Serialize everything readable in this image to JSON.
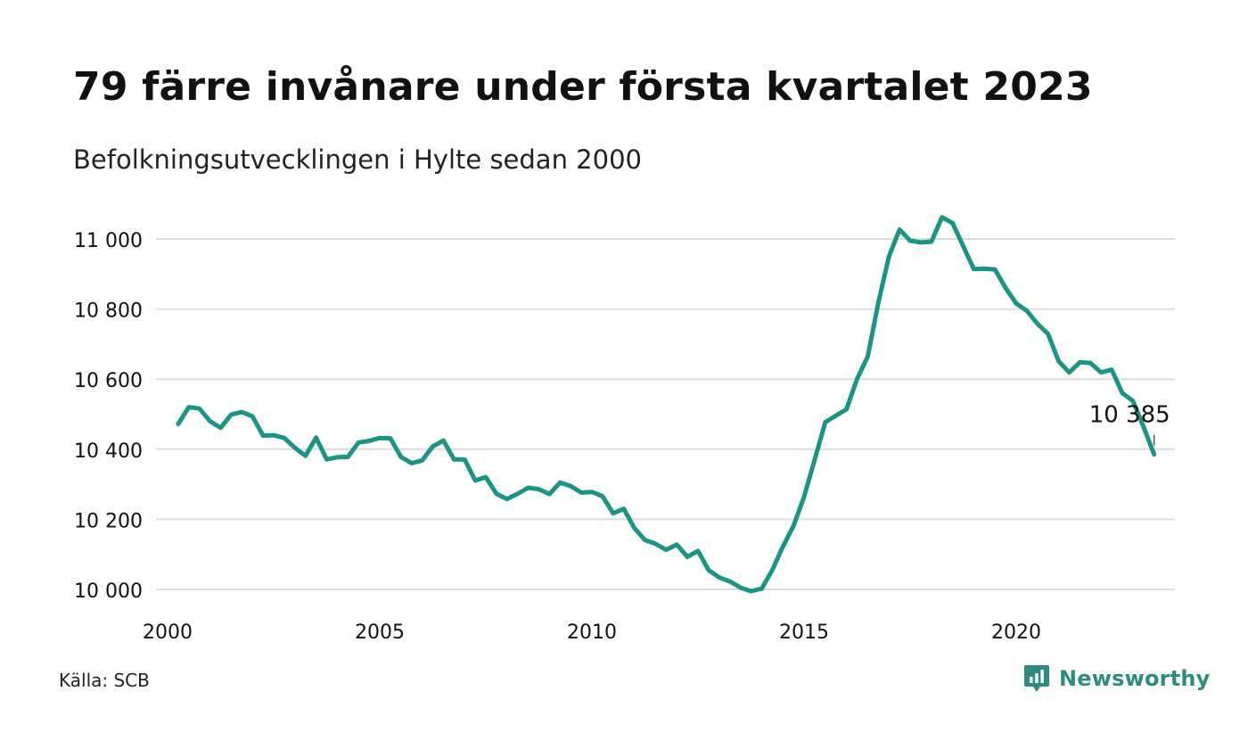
{
  "header": {
    "title": "79 färre invånare under första kvartalet 2023",
    "subtitle": "Befolkningsutvecklingen i Hylte sedan 2000"
  },
  "footer": {
    "source": "Källa: SCB",
    "brand": "Newsworthy",
    "brand_icon": "newsworthy-logo-icon"
  },
  "colors": {
    "line": "#1a9485",
    "grid": "#dddddd",
    "text": "#111111",
    "brand": "#2e8b7f"
  },
  "chart_data": {
    "type": "line",
    "title": "79 färre invånare under första kvartalet 2023",
    "subtitle": "Befolkningsutvecklingen i Hylte sedan 2000",
    "xlabel": "",
    "ylabel": "",
    "ylim": [
      10000,
      11000
    ],
    "xlim": [
      2000,
      2023.5
    ],
    "y_ticks": [
      {
        "value": 11000,
        "label": "11 000"
      },
      {
        "value": 10800,
        "label": "10 800"
      },
      {
        "value": 10600,
        "label": "10 600"
      },
      {
        "value": 10400,
        "label": "10 400"
      },
      {
        "value": 10200,
        "label": "10 200"
      },
      {
        "value": 10000,
        "label": "10 000"
      }
    ],
    "x_ticks": [
      {
        "value": 2000,
        "label": "2000"
      },
      {
        "value": 2005,
        "label": "2005"
      },
      {
        "value": 2010,
        "label": "2010"
      },
      {
        "value": 2015,
        "label": "2015"
      },
      {
        "value": 2020,
        "label": "2020"
      }
    ],
    "grid": true,
    "legend": "none",
    "annotation": {
      "x": 2023.25,
      "y": 10385,
      "label": "10 385"
    },
    "series": [
      {
        "x": [
          2000.25,
          2000.5,
          2000.75,
          2001.0,
          2001.25,
          2001.5,
          2001.75,
          2002.0,
          2002.25,
          2002.5,
          2002.75,
          2003.0,
          2003.25,
          2003.5,
          2003.75,
          2004.0,
          2004.25,
          2004.5,
          2004.75,
          2005.0,
          2005.25,
          2005.5,
          2005.75,
          2006.0,
          2006.25,
          2006.5,
          2006.75,
          2007.0,
          2007.25,
          2007.5,
          2007.75,
          2008.0,
          2008.25,
          2008.5,
          2008.75,
          2009.0,
          2009.25,
          2009.5,
          2009.75,
          2010.0,
          2010.25,
          2010.5,
          2010.75,
          2011.0,
          2011.25,
          2011.5,
          2011.75,
          2012.0,
          2012.25,
          2012.5,
          2012.75,
          2013.0,
          2013.25,
          2013.5,
          2013.75,
          2014.0,
          2014.25,
          2014.5,
          2014.75,
          2015.0,
          2015.25,
          2015.5,
          2015.75,
          2016.0,
          2016.25,
          2016.5,
          2016.75,
          2017.0,
          2017.25,
          2017.5,
          2017.75,
          2018.0,
          2018.25,
          2018.5,
          2018.75,
          2019.0,
          2019.25,
          2019.5,
          2019.75,
          2020.0,
          2020.25,
          2020.5,
          2020.75,
          2021.0,
          2021.25,
          2021.5,
          2021.75,
          2022.0,
          2022.25,
          2022.5,
          2022.75,
          2023.0,
          2023.25
        ],
        "y": [
          10472,
          10520,
          10516,
          10480,
          10461,
          10499,
          10506,
          10494,
          10439,
          10440,
          10432,
          10404,
          10381,
          10433,
          10371,
          10377,
          10378,
          10419,
          10424,
          10432,
          10431,
          10378,
          10360,
          10368,
          10408,
          10425,
          10371,
          10371,
          10311,
          10320,
          10273,
          10258,
          10273,
          10290,
          10286,
          10272,
          10305,
          10295,
          10276,
          10278,
          10266,
          10217,
          10230,
          10175,
          10141,
          10130,
          10113,
          10128,
          10093,
          10110,
          10055,
          10034,
          10023,
          10005,
          9995,
          10002,
          10055,
          10122,
          10181,
          10264,
          10370,
          10477,
          10496,
          10514,
          10601,
          10664,
          10818,
          10950,
          11027,
          10995,
          10990,
          10992,
          11062,
          11045,
          10980,
          10914,
          10915,
          10913,
          10860,
          10816,
          10795,
          10758,
          10729,
          10651,
          10619,
          10648,
          10646,
          10619,
          10627,
          10560,
          10538,
          10464,
          10385
        ]
      }
    ]
  }
}
